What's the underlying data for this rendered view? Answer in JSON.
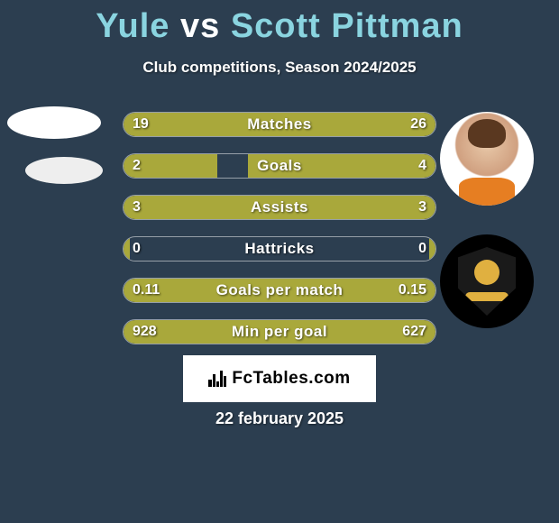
{
  "background_color": "#2c3e50",
  "title": {
    "player1": "Yule",
    "vs": "vs",
    "player2": "Scott Pittman",
    "accent_color": "#8ad4e0",
    "vs_color": "#ffffff",
    "fontsize": 38
  },
  "subtitle": "Club competitions, Season 2024/2025",
  "bar_colors": {
    "left": "#a9a83b",
    "right": "#a9a83b",
    "track": "transparent",
    "border": "rgba(255,255,255,0.5)"
  },
  "stats": [
    {
      "label": "Matches",
      "left_val": "19",
      "right_val": "26",
      "left_pct": 42,
      "right_pct": 58
    },
    {
      "label": "Goals",
      "left_val": "2",
      "right_val": "4",
      "left_pct": 30,
      "right_pct": 60
    },
    {
      "label": "Assists",
      "left_val": "3",
      "right_val": "3",
      "left_pct": 50,
      "right_pct": 50
    },
    {
      "label": "Hattricks",
      "left_val": "0",
      "right_val": "0",
      "left_pct": 2,
      "right_pct": 2
    },
    {
      "label": "Goals per match",
      "left_val": "0.11",
      "right_val": "0.15",
      "left_pct": 42,
      "right_pct": 58
    },
    {
      "label": "Min per goal",
      "left_val": "928",
      "right_val": "627",
      "left_pct": 60,
      "right_pct": 40
    }
  ],
  "logo": {
    "text": "FcTables.com",
    "bars": [
      8,
      14,
      6,
      18,
      12
    ]
  },
  "date": "22 february 2025"
}
